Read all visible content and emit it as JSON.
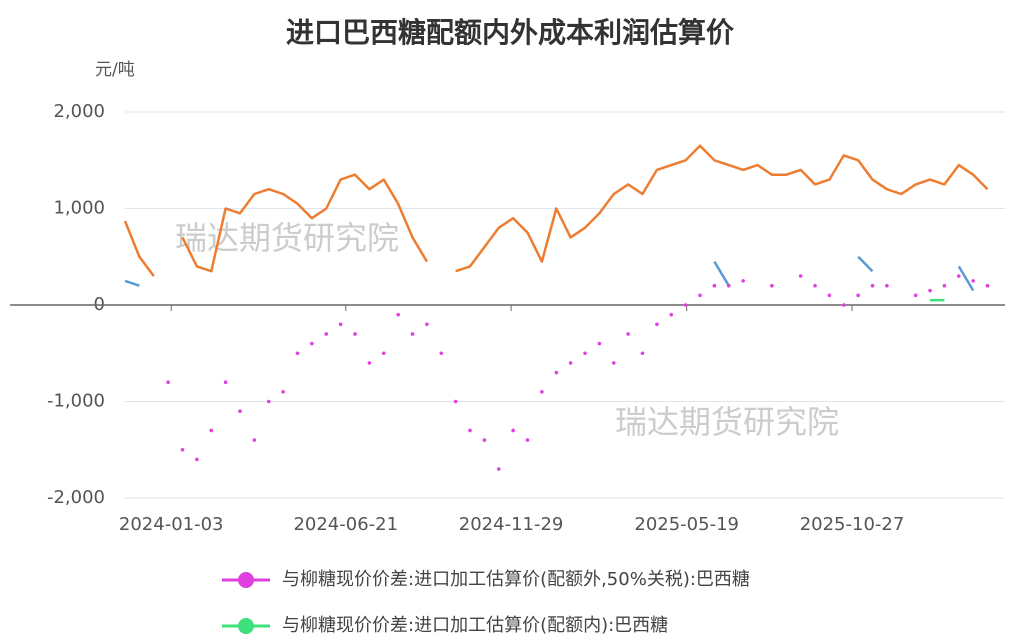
{
  "chart_data": {
    "type": "line",
    "title": "进口巴西糖配额内外成本利润估算价",
    "y_label": "元/吨",
    "annotations": [
      "瑞达期货研究院",
      "瑞达期货研究院"
    ],
    "x": [
      "2023-11-19",
      "2023-12-03",
      "2023-12-17",
      "2023-12-31",
      "2024-01-14",
      "2024-01-28",
      "2024-02-11",
      "2024-02-25",
      "2024-03-10",
      "2024-03-24",
      "2024-04-07",
      "2024-04-21",
      "2024-05-05",
      "2024-05-19",
      "2024-06-02",
      "2024-06-16",
      "2024-06-30",
      "2024-07-14",
      "2024-07-28",
      "2024-08-11",
      "2024-08-25",
      "2024-09-08",
      "2024-09-22",
      "2024-10-06",
      "2024-10-20",
      "2024-11-03",
      "2024-11-17",
      "2024-12-01",
      "2024-12-15",
      "2024-12-29",
      "2025-01-12",
      "2025-01-26",
      "2025-02-09",
      "2025-02-23",
      "2025-03-09",
      "2025-03-23",
      "2025-04-06",
      "2025-04-20",
      "2025-05-04",
      "2025-05-18",
      "2025-06-01",
      "2025-06-15",
      "2025-06-29",
      "2025-07-13",
      "2025-07-27",
      "2025-08-10",
      "2025-08-24",
      "2025-09-07",
      "2025-09-21",
      "2025-10-05",
      "2025-10-19",
      "2025-11-02",
      "2025-11-16",
      "2025-11-30",
      "2025-12-14",
      "2025-12-28",
      "2026-01-11",
      "2026-01-25",
      "2026-02-08",
      "2026-02-22",
      "2026-03-08"
    ],
    "xlim": [
      "2023-11-19",
      "2026-03-25"
    ],
    "xticks": [
      "2024-01-03",
      "2024-06-21",
      "2024-11-29",
      "2025-05-19",
      "2025-10-27"
    ],
    "ylim": [
      -2000,
      2000
    ],
    "yticks": [
      {
        "value": -2000,
        "label": "-2,000"
      },
      {
        "value": -1000,
        "label": "-1,000"
      },
      0,
      {
        "value": 1000,
        "label": "1,000"
      },
      {
        "value": 2000,
        "label": "2,000"
      }
    ],
    "grid": true,
    "legend": "bottom",
    "series": [
      {
        "color": "#ed7d31",
        "marker": "line",
        "values": [
          870,
          500,
          300,
          null,
          700,
          400,
          350,
          1000,
          950,
          1150,
          1200,
          1150,
          1050,
          900,
          1000,
          1300,
          1350,
          1200,
          1300,
          1050,
          700,
          450,
          null,
          350,
          400,
          600,
          800,
          900,
          750,
          450,
          1000,
          700,
          800,
          950,
          1150,
          1250,
          1150,
          1400,
          1450,
          1500,
          1650,
          1500,
          1450,
          1400,
          1450,
          1350,
          1350,
          1400,
          1250,
          1300,
          1550,
          1500,
          1300,
          1200,
          1150,
          1250,
          1300,
          1250,
          1450,
          1350,
          1200
        ]
      },
      {
        "color": "#5b9bd5",
        "marker": "line",
        "values": [
          250,
          200,
          null,
          null,
          null,
          null,
          null,
          null,
          null,
          null,
          null,
          null,
          null,
          null,
          null,
          null,
          null,
          null,
          null,
          null,
          null,
          null,
          null,
          null,
          null,
          null,
          null,
          null,
          null,
          null,
          null,
          null,
          null,
          null,
          null,
          null,
          null,
          null,
          null,
          null,
          null,
          450,
          200,
          null,
          null,
          null,
          null,
          null,
          null,
          null,
          null,
          500,
          350,
          null,
          null,
          null,
          null,
          null,
          400,
          150,
          null
        ]
      },
      {
        "name": "与柳糖现价价差:进口加工估算价(配额外,50%关税):巴西糖",
        "color": "#e040e0",
        "marker": "dots",
        "values": [
          null,
          null,
          null,
          -800,
          -1500,
          -1600,
          -1300,
          -800,
          -1100,
          -1400,
          -1000,
          -900,
          -500,
          -400,
          -300,
          -200,
          -300,
          -600,
          -500,
          -100,
          -300,
          -200,
          -500,
          -1000,
          -1300,
          -1400,
          -1700,
          -1300,
          -1400,
          -900,
          -700,
          -600,
          -500,
          -400,
          -600,
          -300,
          -500,
          -200,
          -100,
          0,
          100,
          200,
          200,
          250,
          null,
          200,
          null,
          300,
          200,
          100,
          0,
          100,
          200,
          200,
          null,
          100,
          150,
          200,
          300,
          250,
          200
        ]
      },
      {
        "name": "与柳糖现价价差:进口加工估算价(配额内):巴西糖",
        "color": "#3de07a",
        "marker": "line",
        "values": [
          null,
          null,
          null,
          null,
          null,
          null,
          null,
          null,
          null,
          null,
          null,
          null,
          null,
          null,
          null,
          null,
          null,
          null,
          null,
          null,
          null,
          null,
          null,
          null,
          null,
          null,
          null,
          null,
          null,
          null,
          null,
          null,
          null,
          null,
          null,
          null,
          null,
          null,
          null,
          null,
          null,
          null,
          null,
          null,
          null,
          null,
          null,
          null,
          null,
          null,
          null,
          null,
          null,
          null,
          null,
          null,
          50,
          50,
          null,
          null,
          null
        ]
      }
    ]
  }
}
